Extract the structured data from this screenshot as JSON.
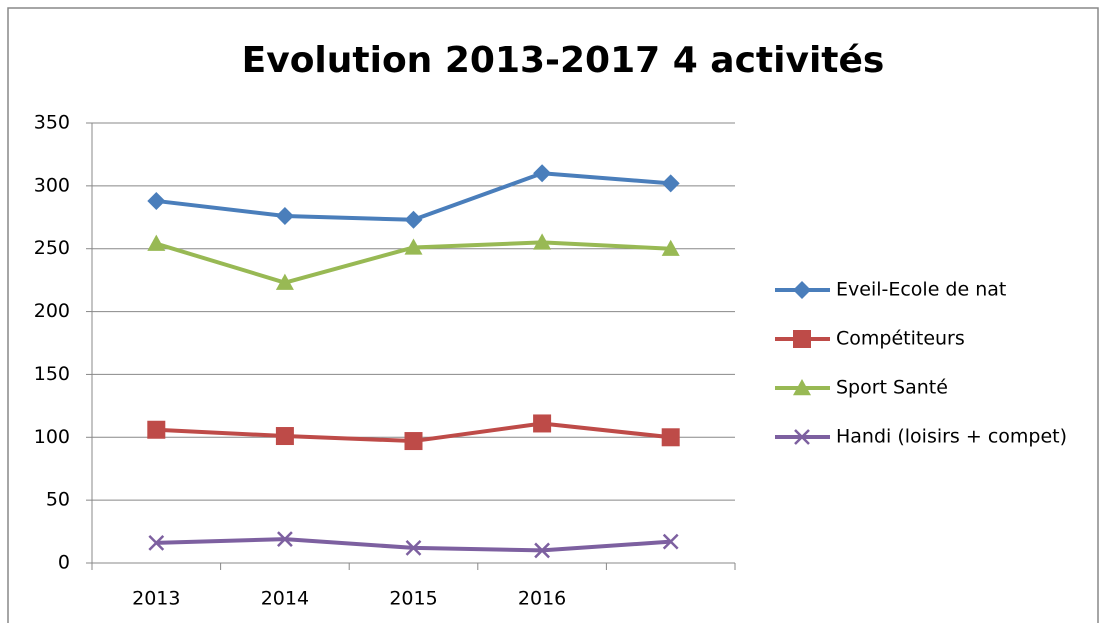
{
  "chart_data": {
    "type": "line",
    "title": "Evolution 2013-2017 4 activités",
    "categories": [
      "2013",
      "2014",
      "2015",
      "2016",
      null
    ],
    "series": [
      {
        "name": "Eveil-Ecole de nat",
        "color": "#4a7ebb",
        "marker": "diamond",
        "values": [
          288,
          276,
          273,
          310,
          302
        ]
      },
      {
        "name": "Compétiteurs",
        "color": "#be4b48",
        "marker": "square",
        "values": [
          106,
          101,
          97,
          111,
          100
        ]
      },
      {
        "name": "Sport Santé",
        "color": "#98b954",
        "marker": "triangle",
        "values": [
          254,
          223,
          251,
          255,
          250
        ]
      },
      {
        "name": "Handi (loisirs + compet)",
        "color": "#7d60a0",
        "marker": "x",
        "values": [
          16,
          19,
          12,
          10,
          17
        ]
      }
    ],
    "ylim": [
      0,
      350
    ],
    "yticks": [
      0,
      50,
      100,
      150,
      200,
      250,
      300,
      350
    ],
    "grid": true,
    "legend": "right"
  }
}
